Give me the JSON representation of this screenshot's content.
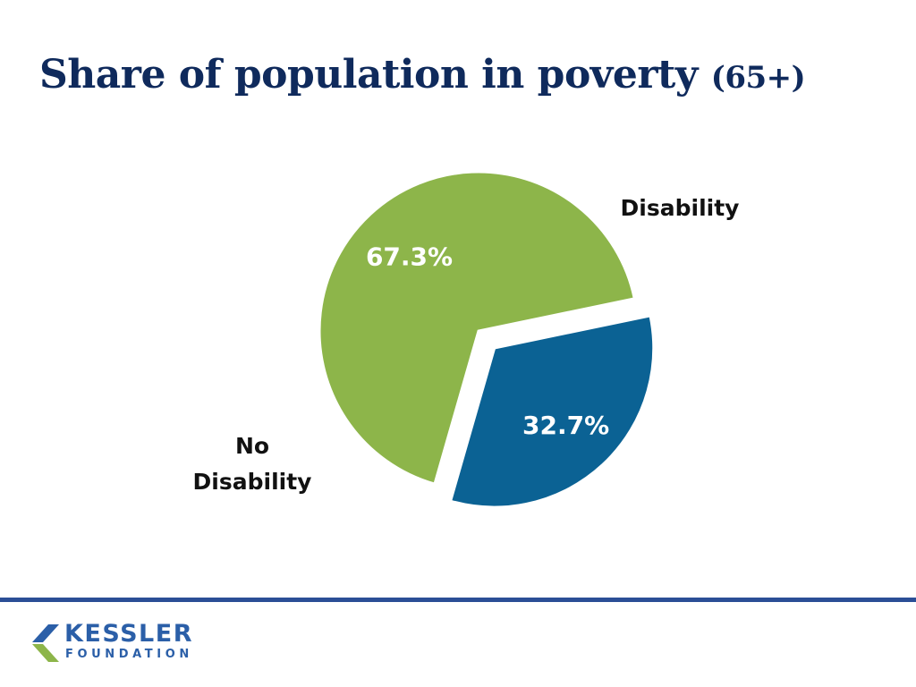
{
  "slide": {
    "title": "Share of population in poverty",
    "title_suffix": "(65+)"
  },
  "chart_data": {
    "type": "pie",
    "title": "Share of population in poverty (65+)",
    "slices": [
      {
        "label": "Disability",
        "value": 67.3,
        "value_label": "67.3%",
        "color": "#8db54a",
        "exploded": false
      },
      {
        "label": "No Disability",
        "value": 32.7,
        "value_label": "32.7%",
        "color": "#0b6294",
        "exploded": true
      }
    ],
    "legend": "none"
  },
  "footer": {
    "logo_text": "KESSLER",
    "logo_subtext": "FOUNDATION",
    "rule_color": "#2b4e96",
    "brand_color": "#2b5fa8",
    "accent_color": "#8db54a"
  }
}
